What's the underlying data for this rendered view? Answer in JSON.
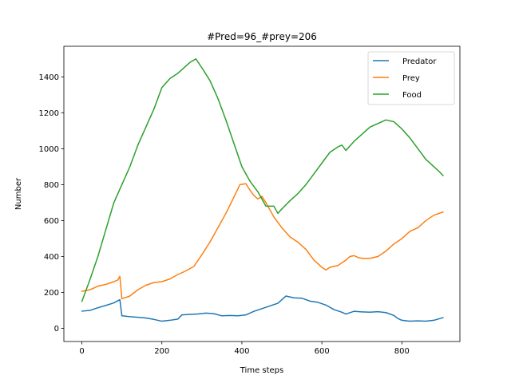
{
  "chart_data": {
    "type": "line",
    "title": "#Pred=96_#prey=206",
    "xlabel": "Time steps",
    "ylabel": "Number",
    "xlim": [
      -45,
      945
    ],
    "ylim": [
      -73,
      1570
    ],
    "x_ticks": [
      0,
      200,
      400,
      600,
      800
    ],
    "y_ticks": [
      0,
      200,
      400,
      600,
      800,
      1000,
      1200,
      1400
    ],
    "grid": false,
    "legend_position": "top-right",
    "series": [
      {
        "name": "Predator",
        "color": "#1f77b4",
        "points": [
          [
            0,
            96
          ],
          [
            20,
            100
          ],
          [
            40,
            115
          ],
          [
            60,
            128
          ],
          [
            80,
            142
          ],
          [
            95,
            160
          ],
          [
            100,
            70
          ],
          [
            120,
            65
          ],
          [
            140,
            62
          ],
          [
            160,
            58
          ],
          [
            180,
            50
          ],
          [
            200,
            40
          ],
          [
            220,
            45
          ],
          [
            240,
            52
          ],
          [
            250,
            75
          ],
          [
            270,
            78
          ],
          [
            290,
            80
          ],
          [
            310,
            85
          ],
          [
            330,
            82
          ],
          [
            350,
            70
          ],
          [
            370,
            72
          ],
          [
            390,
            70
          ],
          [
            410,
            75
          ],
          [
            430,
            95
          ],
          [
            450,
            110
          ],
          [
            470,
            125
          ],
          [
            490,
            140
          ],
          [
            500,
            160
          ],
          [
            510,
            180
          ],
          [
            530,
            170
          ],
          [
            550,
            168
          ],
          [
            570,
            152
          ],
          [
            590,
            145
          ],
          [
            610,
            130
          ],
          [
            630,
            105
          ],
          [
            650,
            90
          ],
          [
            660,
            80
          ],
          [
            680,
            95
          ],
          [
            700,
            92
          ],
          [
            720,
            90
          ],
          [
            740,
            93
          ],
          [
            760,
            88
          ],
          [
            780,
            72
          ],
          [
            790,
            55
          ],
          [
            800,
            45
          ],
          [
            820,
            40
          ],
          [
            840,
            42
          ],
          [
            860,
            40
          ],
          [
            880,
            45
          ],
          [
            903,
            60
          ]
        ]
      },
      {
        "name": "Prey",
        "color": "#ff7f0e",
        "points": [
          [
            0,
            206
          ],
          [
            20,
            215
          ],
          [
            40,
            235
          ],
          [
            60,
            245
          ],
          [
            80,
            260
          ],
          [
            90,
            270
          ],
          [
            95,
            290
          ],
          [
            100,
            165
          ],
          [
            120,
            180
          ],
          [
            140,
            215
          ],
          [
            160,
            240
          ],
          [
            180,
            255
          ],
          [
            200,
            260
          ],
          [
            220,
            275
          ],
          [
            240,
            300
          ],
          [
            260,
            320
          ],
          [
            280,
            345
          ],
          [
            300,
            410
          ],
          [
            320,
            480
          ],
          [
            340,
            560
          ],
          [
            360,
            640
          ],
          [
            380,
            730
          ],
          [
            395,
            800
          ],
          [
            410,
            805
          ],
          [
            420,
            770
          ],
          [
            430,
            740
          ],
          [
            440,
            720
          ],
          [
            450,
            735
          ],
          [
            460,
            700
          ],
          [
            480,
            620
          ],
          [
            500,
            560
          ],
          [
            520,
            510
          ],
          [
            540,
            480
          ],
          [
            560,
            440
          ],
          [
            580,
            380
          ],
          [
            600,
            340
          ],
          [
            610,
            325
          ],
          [
            620,
            340
          ],
          [
            640,
            350
          ],
          [
            660,
            380
          ],
          [
            670,
            400
          ],
          [
            680,
            405
          ],
          [
            690,
            395
          ],
          [
            700,
            390
          ],
          [
            720,
            390
          ],
          [
            740,
            400
          ],
          [
            760,
            430
          ],
          [
            780,
            470
          ],
          [
            800,
            500
          ],
          [
            820,
            540
          ],
          [
            840,
            560
          ],
          [
            860,
            600
          ],
          [
            880,
            630
          ],
          [
            903,
            648
          ]
        ]
      },
      {
        "name": "Food",
        "color": "#2ca02c",
        "points": [
          [
            0,
            150
          ],
          [
            20,
            270
          ],
          [
            40,
            400
          ],
          [
            60,
            550
          ],
          [
            80,
            700
          ],
          [
            100,
            800
          ],
          [
            120,
            900
          ],
          [
            140,
            1020
          ],
          [
            160,
            1120
          ],
          [
            180,
            1220
          ],
          [
            200,
            1340
          ],
          [
            220,
            1390
          ],
          [
            240,
            1420
          ],
          [
            260,
            1460
          ],
          [
            270,
            1480
          ],
          [
            285,
            1500
          ],
          [
            300,
            1450
          ],
          [
            320,
            1380
          ],
          [
            340,
            1280
          ],
          [
            360,
            1160
          ],
          [
            380,
            1030
          ],
          [
            400,
            900
          ],
          [
            420,
            820
          ],
          [
            440,
            760
          ],
          [
            460,
            680
          ],
          [
            480,
            680
          ],
          [
            490,
            640
          ],
          [
            500,
            665
          ],
          [
            520,
            710
          ],
          [
            540,
            750
          ],
          [
            560,
            800
          ],
          [
            580,
            860
          ],
          [
            600,
            920
          ],
          [
            620,
            980
          ],
          [
            640,
            1010
          ],
          [
            650,
            1020
          ],
          [
            660,
            990
          ],
          [
            680,
            1040
          ],
          [
            700,
            1080
          ],
          [
            720,
            1120
          ],
          [
            740,
            1140
          ],
          [
            760,
            1160
          ],
          [
            780,
            1150
          ],
          [
            800,
            1110
          ],
          [
            820,
            1060
          ],
          [
            840,
            1000
          ],
          [
            860,
            940
          ],
          [
            880,
            900
          ],
          [
            890,
            880
          ],
          [
            903,
            850
          ]
        ]
      }
    ]
  }
}
